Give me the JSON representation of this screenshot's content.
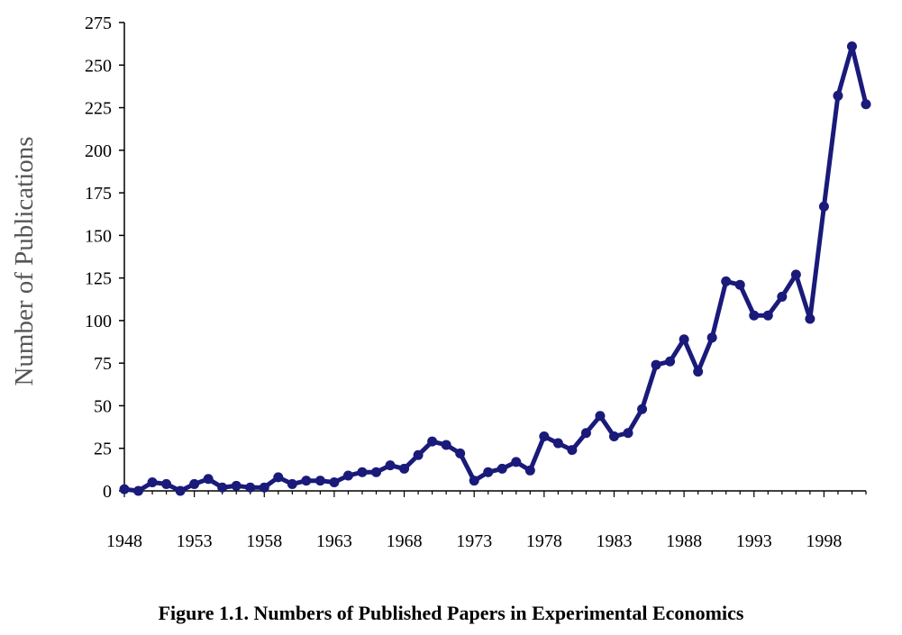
{
  "caption": "Figure 1.1.  Numbers of Published Papers in Experimental Economics",
  "chart_data": {
    "type": "line",
    "title": "",
    "xlabel": "",
    "ylabel": "Number of Publications",
    "xlim": [
      1948,
      2001
    ],
    "ylim": [
      0,
      275
    ],
    "xticks": [
      1948,
      1953,
      1958,
      1963,
      1968,
      1973,
      1978,
      1983,
      1988,
      1993,
      1998
    ],
    "yticks": [
      0,
      25,
      50,
      75,
      100,
      125,
      150,
      175,
      200,
      225,
      250,
      275
    ],
    "grid": false,
    "legend": "none",
    "line_color": "#1a1a7a",
    "series": [
      {
        "x": [
          1948,
          1949,
          1950,
          1951,
          1952,
          1953,
          1954,
          1955,
          1956,
          1957,
          1958,
          1959,
          1960,
          1961,
          1962,
          1963,
          1964,
          1965,
          1966,
          1967,
          1968,
          1969,
          1970,
          1971,
          1972,
          1973,
          1974,
          1975,
          1976,
          1977,
          1978,
          1979,
          1980,
          1981,
          1982,
          1983,
          1984,
          1985,
          1986,
          1987,
          1988,
          1989,
          1990,
          1991,
          1992,
          1993,
          1994,
          1995,
          1996,
          1997,
          1998,
          1999,
          2000,
          2001
        ],
        "y": [
          1,
          0,
          5,
          4,
          0,
          4,
          7,
          2,
          3,
          2,
          2,
          8,
          4,
          6,
          6,
          5,
          9,
          11,
          11,
          15,
          13,
          21,
          29,
          27,
          22,
          6,
          11,
          13,
          17,
          12,
          32,
          28,
          24,
          34,
          44,
          32,
          34,
          48,
          74,
          76,
          89,
          70,
          90,
          123,
          121,
          103,
          103,
          114,
          127,
          101,
          167,
          232,
          261,
          227
        ]
      }
    ]
  }
}
